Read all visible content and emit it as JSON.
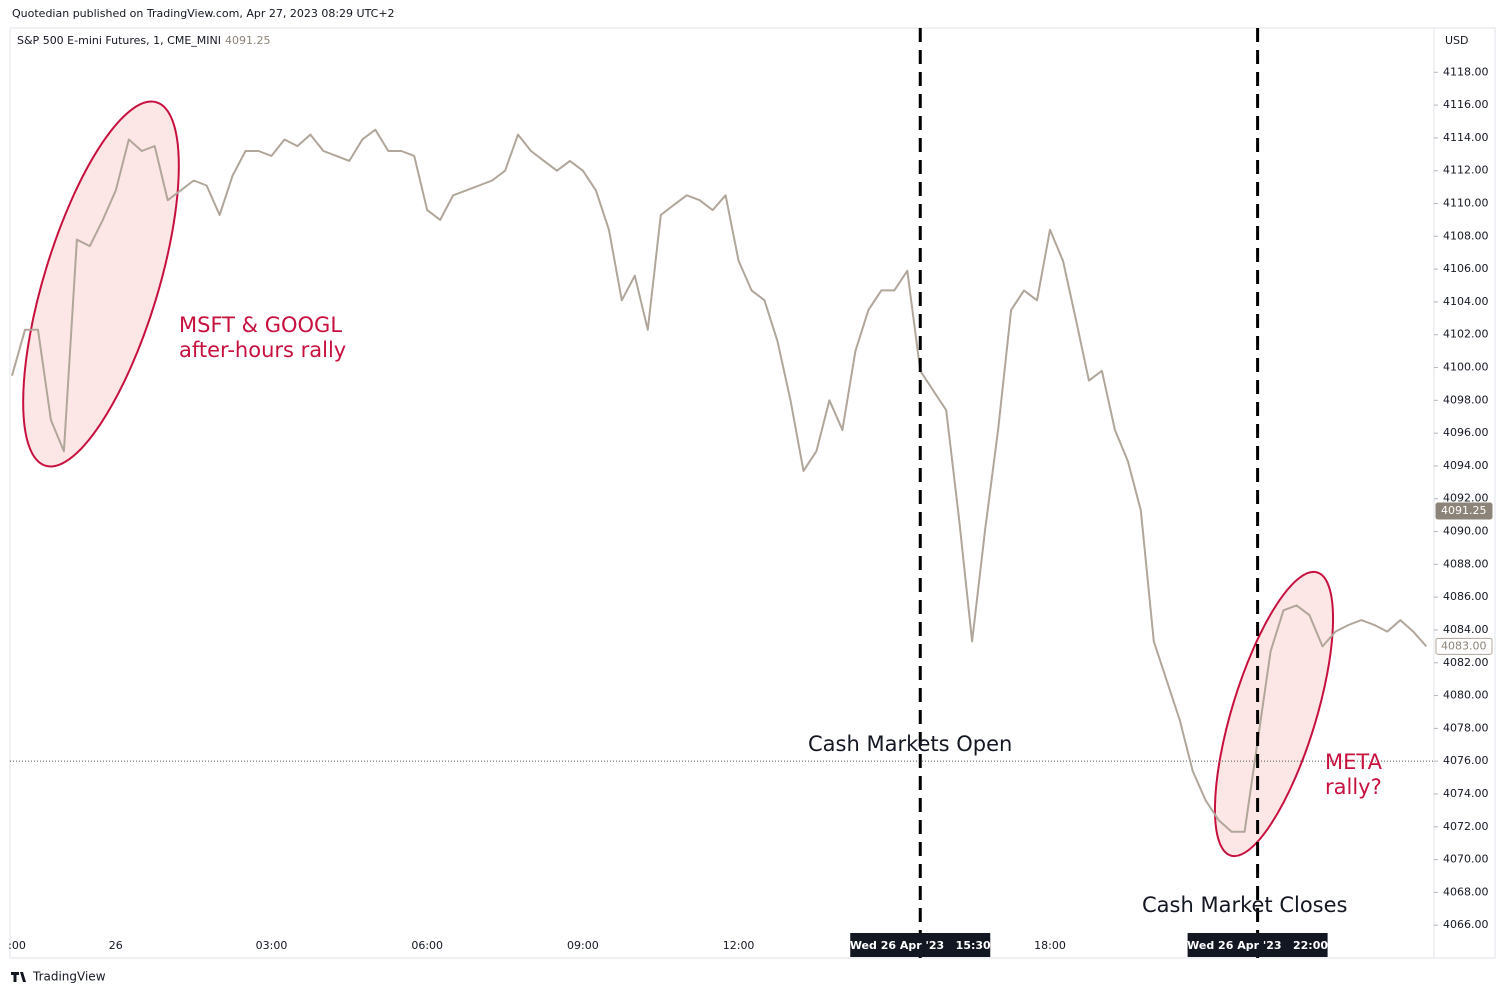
{
  "chart_data": {
    "type": "line",
    "publisher": "Quotedian published on TradingView.com, Apr 27, 2023 08:29 UTC+2",
    "title": "S&P 500 E-mini Futures, 1, CME_MINI",
    "currency": "USD",
    "brand": "TradingView",
    "color": "#b0a699",
    "categories": [
      ":00",
      null,
      null,
      null,
      null,
      null,
      null,
      null,
      "26",
      null,
      null,
      null,
      null,
      null,
      null,
      null,
      null,
      null,
      null,
      null,
      "03:00",
      null,
      null,
      null,
      null,
      null,
      null,
      null,
      null,
      null,
      null,
      null,
      "06:00",
      null,
      null,
      null,
      null,
      null,
      null,
      null,
      null,
      null,
      null,
      null,
      "09:00",
      null,
      null,
      null,
      null,
      null,
      null,
      null,
      null,
      null,
      null,
      null,
      "12:00",
      null,
      null,
      null,
      null,
      null,
      null,
      null,
      null,
      null,
      null,
      null,
      null,
      null,
      {
        "label": "Wed 26 Apr '23   15:30",
        "flag": true
      },
      null,
      null,
      null,
      null,
      null,
      null,
      null,
      null,
      null,
      "18:00",
      null,
      null,
      null,
      null,
      null,
      null,
      null,
      null,
      null,
      null,
      null,
      null,
      null,
      null,
      null,
      {
        "label": "Wed 26 Apr '23   22:00",
        "flag": true
      },
      null,
      null,
      null,
      null,
      null,
      null,
      null,
      null,
      null,
      null,
      null,
      null,
      null
    ],
    "values": [
      4099.5,
      4102.3,
      4102.3,
      4096.8,
      4094.9,
      4107.8,
      4107.4,
      4109.0,
      4110.8,
      4113.9,
      4113.2,
      4113.5,
      4110.2,
      4110.8,
      4111.4,
      4111.1,
      4109.3,
      4111.7,
      4113.2,
      4113.2,
      4112.9,
      4113.9,
      4113.5,
      4114.2,
      4113.2,
      4112.9,
      4112.6,
      4113.9,
      4114.5,
      4113.2,
      4113.2,
      4112.9,
      4109.6,
      4109.0,
      4110.5,
      4110.8,
      4111.1,
      4111.4,
      4112.0,
      4114.2,
      4113.2,
      4112.6,
      4112.0,
      4112.6,
      4112.0,
      4110.8,
      4108.4,
      4104.1,
      4105.6,
      4102.3,
      4109.3,
      4109.9,
      4110.5,
      4110.2,
      4109.6,
      4110.5,
      4106.5,
      4104.7,
      4104.1,
      4101.6,
      4098.0,
      4093.7,
      4094.9,
      4098.0,
      4096.2,
      4101.0,
      4103.5,
      4104.7,
      4104.7,
      4105.9,
      4099.8,
      4098.6,
      4097.4,
      4090.7,
      4083.3,
      4090.1,
      4096.2,
      4103.5,
      4104.7,
      4104.1,
      4108.4,
      4106.5,
      4102.9,
      4099.2,
      4099.8,
      4096.2,
      4094.3,
      4091.3,
      4083.3,
      4080.9,
      4078.5,
      4075.4,
      4073.6,
      4072.4,
      4071.7,
      4071.7,
      4077.2,
      4082.7,
      4085.2,
      4085.5,
      4084.9,
      4083.0,
      4083.9,
      4084.3,
      4084.6,
      4084.3,
      4083.9,
      4084.6,
      4083.9,
      4083.0
    ],
    "ylim": [
      4064,
      4120.7
    ],
    "yticks": [
      {
        "value": 4066,
        "label": "4066.00"
      },
      {
        "value": 4068,
        "label": "4068.00"
      },
      {
        "value": 4070,
        "label": "4070.00"
      },
      {
        "value": 4072,
        "label": "4072.00"
      },
      {
        "value": 4074,
        "label": "4074.00"
      },
      {
        "value": 4076,
        "label": "4076.00"
      },
      {
        "value": 4078,
        "label": "4078.00"
      },
      {
        "value": 4080,
        "label": "4080.00"
      },
      {
        "value": 4082,
        "label": "4082.00"
      },
      {
        "value": 4084,
        "label": "4084.00"
      },
      {
        "value": 4086,
        "label": "4086.00"
      },
      {
        "value": 4088,
        "label": "4088.00"
      },
      {
        "value": 4090,
        "label": "4090.00"
      },
      {
        "value": 4092,
        "label": "4092.00"
      },
      {
        "value": 4094,
        "label": "4094.00"
      },
      {
        "value": 4096,
        "label": "4096.00"
      },
      {
        "value": 4098,
        "label": "4098.00"
      },
      {
        "value": 4100,
        "label": "4100.00"
      },
      {
        "value": 4102,
        "label": "4102.00"
      },
      {
        "value": 4104,
        "label": "4104.00"
      },
      {
        "value": 4106,
        "label": "4106.00"
      },
      {
        "value": 4108,
        "label": "4108.00"
      },
      {
        "value": 4110,
        "label": "4110.00"
      },
      {
        "value": 4112,
        "label": "4112.00"
      },
      {
        "value": 4114,
        "label": "4114.00"
      },
      {
        "value": 4116,
        "label": "4116.00"
      },
      {
        "value": 4118,
        "label": "4118.00"
      }
    ],
    "price_labels": [
      {
        "value": 4091.25,
        "label": "4091.25",
        "color": "#8c8478"
      },
      {
        "value": 4083,
        "label": "4083.00",
        "color": "#ffffff"
      }
    ],
    "reference_line": 4076,
    "annotations": {
      "left_rally": [
        "MSFT & GOOGL",
        "after-hours rally"
      ],
      "meta_rally": [
        "META",
        "rally?"
      ],
      "open": "Cash Markets Open",
      "close": "Cash Market Closes"
    }
  }
}
